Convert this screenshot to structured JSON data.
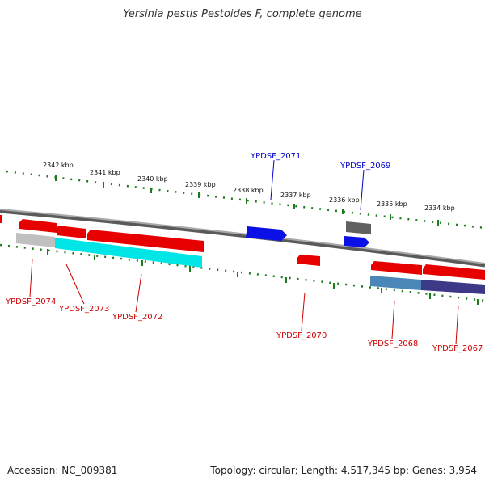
{
  "title": "Yersinia pestis Pestoides F, complete genome",
  "accession_line": "Accession: NC_009381",
  "summary_line": "Topology: circular; Length: 4,517,345 bp; Genes: 3,954",
  "colors": {
    "forward_gene": "#e60000",
    "reverse_gene": "#0a10e6",
    "label_red": "#cc0000",
    "label_blue": "#0000cc",
    "backbone": "#7a7a7a",
    "tick": "#1d7a1d",
    "cyan": "#00e5e5",
    "grey_feature": "#c0c0c0",
    "dark_grey_feature": "#606060",
    "steel": "#4a86b8",
    "navy": "#3c3a86"
  },
  "ticks": [
    {
      "label": "2342 kbp"
    },
    {
      "label": "2341 kbp"
    },
    {
      "label": "2340 kbp"
    },
    {
      "label": "2339 kbp"
    },
    {
      "label": "2338 kbp"
    },
    {
      "label": "2337 kbp"
    },
    {
      "label": "2336 kbp"
    },
    {
      "label": "2335 kbp"
    },
    {
      "label": "2334 kbp"
    }
  ],
  "genes": [
    {
      "id": "YPDSF_2074",
      "strand": "forward"
    },
    {
      "id": "YPDSF_2073",
      "strand": "forward"
    },
    {
      "id": "YPDSF_2072",
      "strand": "forward"
    },
    {
      "id": "YPDSF_2071",
      "strand": "reverse"
    },
    {
      "id": "YPDSF_2070",
      "strand": "forward"
    },
    {
      "id": "YPDSF_2069",
      "strand": "reverse"
    },
    {
      "id": "YPDSF_2068",
      "strand": "forward"
    },
    {
      "id": "YPDSF_2067",
      "strand": "forward"
    }
  ]
}
